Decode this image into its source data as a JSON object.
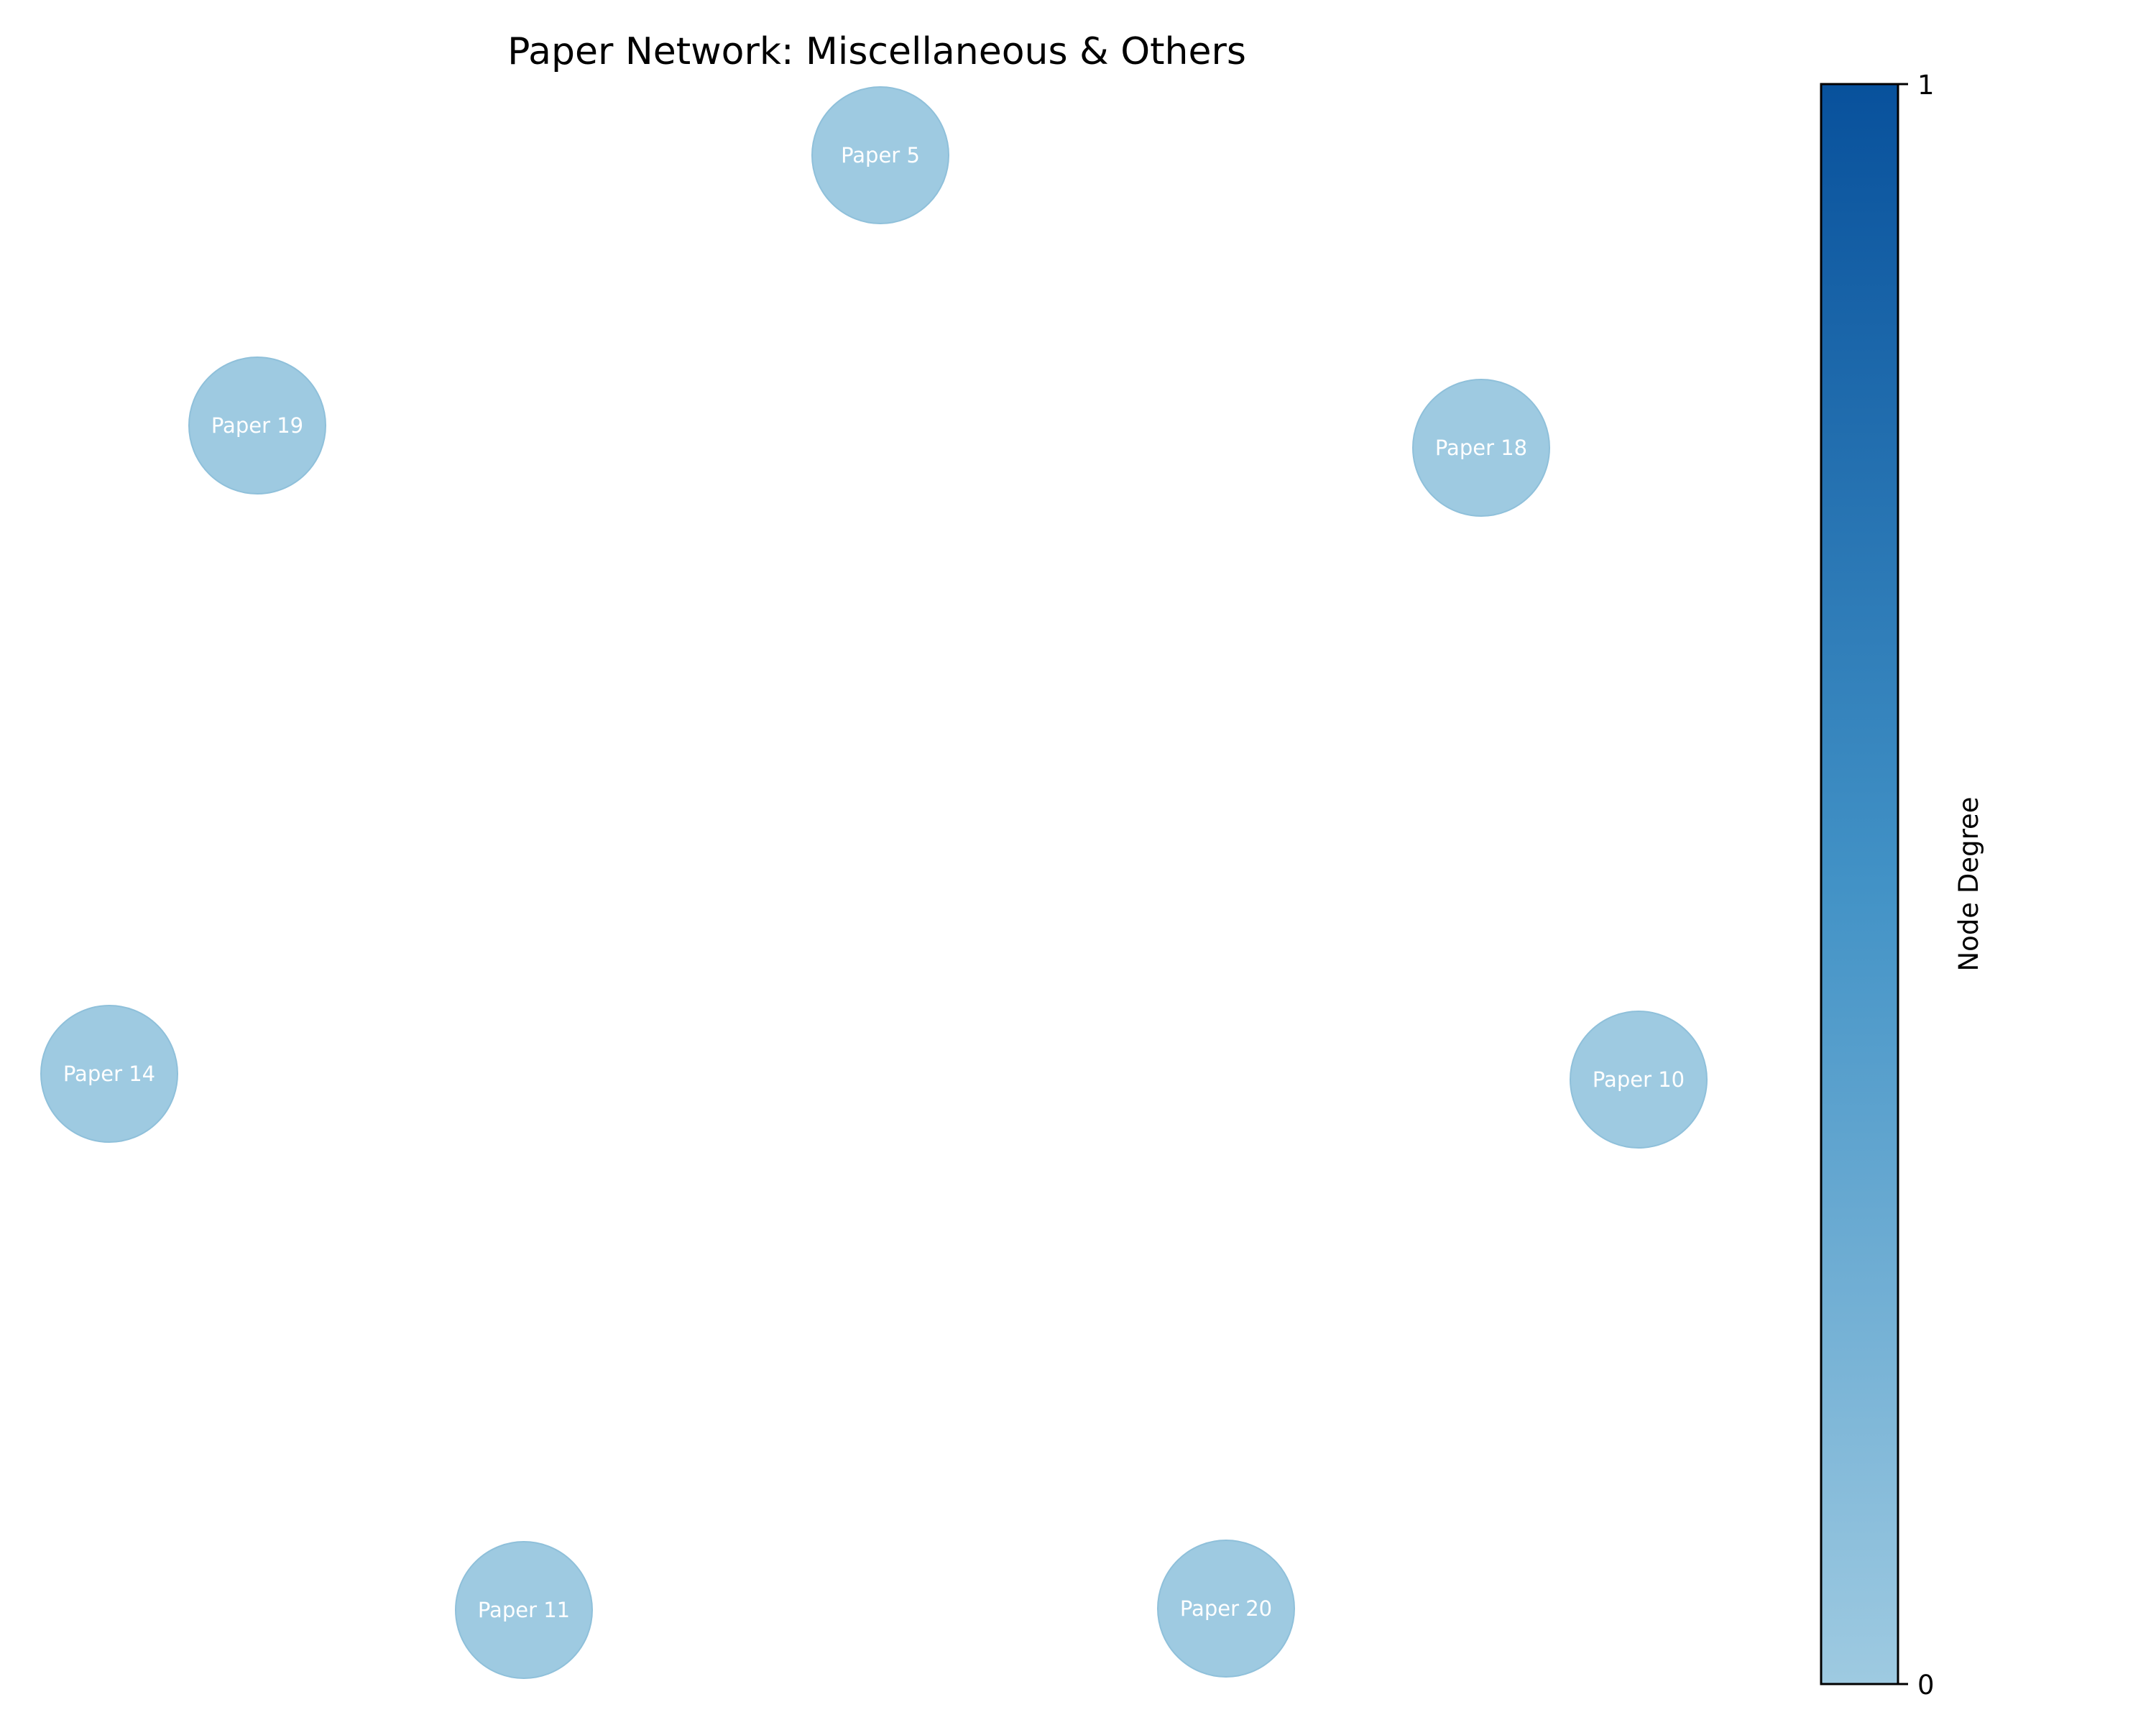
{
  "figure": {
    "title": "Paper Network: Miscellaneous & Others"
  },
  "network": {
    "node_color": "#9ecae1",
    "nodes": [
      {
        "id": "Paper 5",
        "degree": 0
      },
      {
        "id": "Paper 19",
        "degree": 0
      },
      {
        "id": "Paper 18",
        "degree": 0
      },
      {
        "id": "Paper 14",
        "degree": 0
      },
      {
        "id": "Paper 10",
        "degree": 0
      },
      {
        "id": "Paper 11",
        "degree": 0
      },
      {
        "id": "Paper 20",
        "degree": 0
      }
    ],
    "edges": []
  },
  "colorbar": {
    "label": "Node Degree",
    "min_tick": "0",
    "max_tick": "1",
    "range": [
      0,
      1
    ],
    "color_low": "#9ecae1",
    "color_high": "#08519c"
  }
}
